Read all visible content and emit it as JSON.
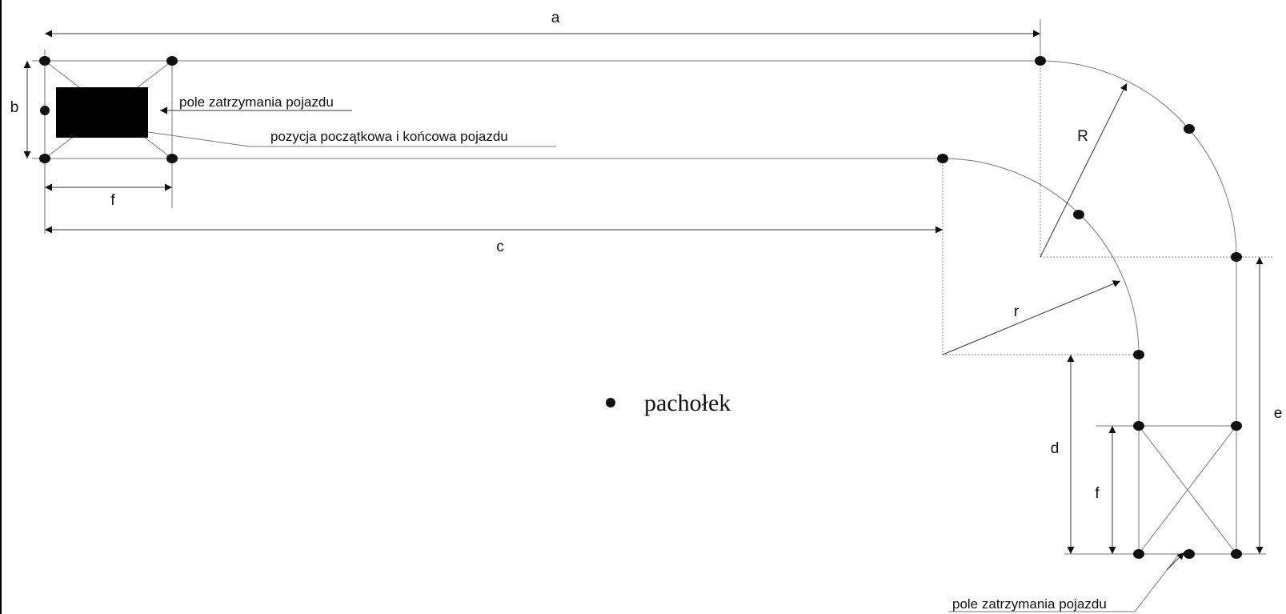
{
  "labels": {
    "a": "a",
    "b": "b",
    "c": "c",
    "d": "d",
    "e": "e",
    "f_top": "f",
    "f_bottom": "f",
    "R": "R",
    "r": "r"
  },
  "annotations": {
    "stop_field_top": "pole zatrzymania pojazdu",
    "start_end_position": "pozycja początkowa i końcowa pojazdu",
    "stop_field_bottom": "pole zatrzymania pojazdu"
  },
  "legend": {
    "cone_label": "pachołek"
  },
  "colors": {
    "line": "#777777",
    "dimension": "#333333",
    "cone": "#111111",
    "vehicle": "#000000"
  }
}
